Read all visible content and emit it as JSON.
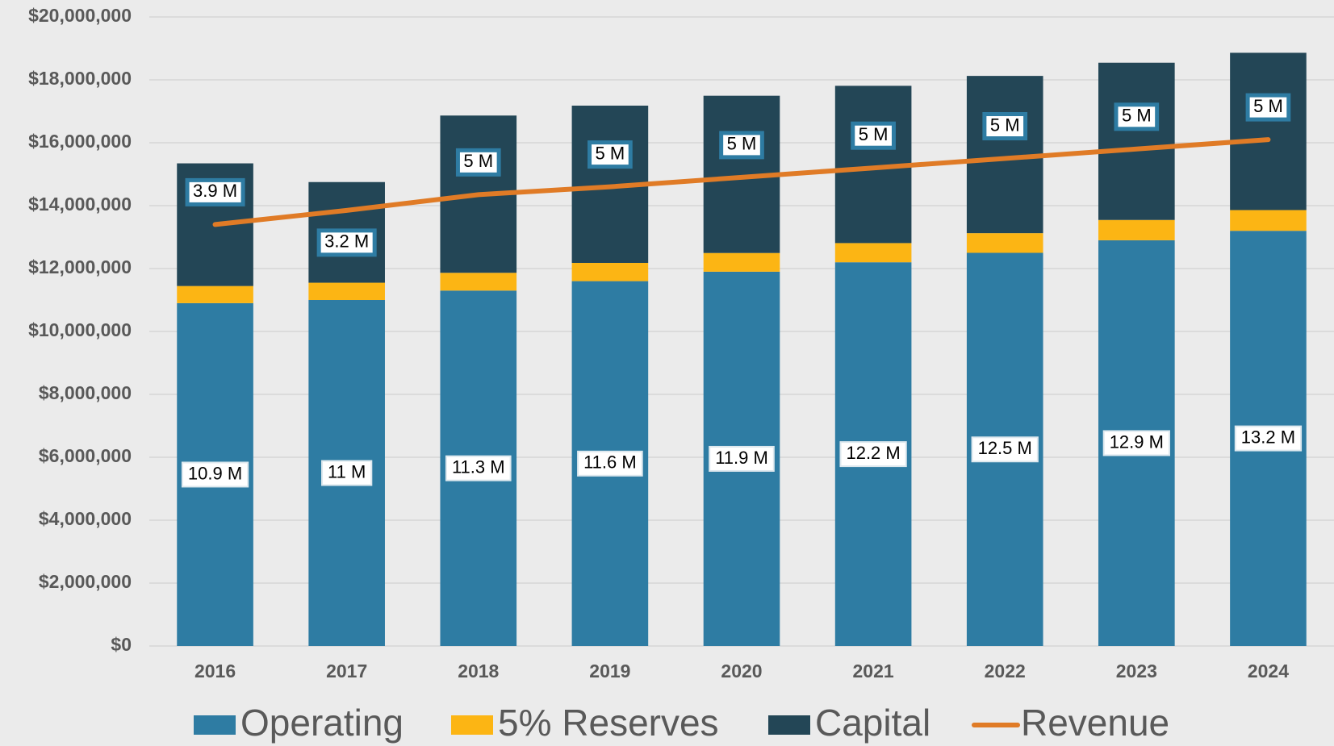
{
  "chart_data": {
    "type": "bar",
    "stacked": true,
    "categories": [
      "2016",
      "2017",
      "2018",
      "2019",
      "2020",
      "2021",
      "2022",
      "2023",
      "2024"
    ],
    "series": [
      {
        "name": "Operating",
        "color": "#2e7ca3",
        "values": [
          10900000,
          11000000,
          11300000,
          11600000,
          11900000,
          12200000,
          12500000,
          12900000,
          13200000
        ],
        "value_labels": [
          "10.9 M",
          "11 M",
          "11.3 M",
          "11.6 M",
          "11.9 M",
          "12.2 M",
          "12.5 M",
          "12.9 M",
          "13.2 M"
        ]
      },
      {
        "name": "5% Reserves",
        "color": "#fcb514",
        "values": [
          545000,
          550000,
          565000,
          580000,
          595000,
          610000,
          625000,
          645000,
          660000
        ]
      },
      {
        "name": "Capital",
        "color": "#234656",
        "values": [
          3900000,
          3200000,
          5000000,
          5000000,
          5000000,
          5000000,
          5000000,
          5000000,
          5000000
        ],
        "value_labels": [
          "3.9 M",
          "3.2 M",
          "5 M",
          "5 M",
          "5 M",
          "5 M",
          "5 M",
          "5 M",
          "5 M"
        ]
      },
      {
        "name": "Revenue",
        "type": "line",
        "color": "#e07b26",
        "values": [
          13400000,
          13850000,
          14350000,
          14600000,
          14900000,
          15200000,
          15500000,
          15800000,
          16100000
        ]
      }
    ],
    "ylim": [
      0,
      20000000
    ],
    "yticks": [
      {
        "value": 0,
        "label": "$0"
      },
      {
        "value": 2000000,
        "label": "$2,000,000"
      },
      {
        "value": 4000000,
        "label": "$4,000,000"
      },
      {
        "value": 6000000,
        "label": "$6,000,000"
      },
      {
        "value": 8000000,
        "label": "$8,000,000"
      },
      {
        "value": 10000000,
        "label": "$10,000,000"
      },
      {
        "value": 12000000,
        "label": "$12,000,000"
      },
      {
        "value": 14000000,
        "label": "$14,000,000"
      },
      {
        "value": 16000000,
        "label": "$16,000,000"
      },
      {
        "value": 18000000,
        "label": "$18,000,000"
      },
      {
        "value": 20000000,
        "label": "$20,000,000"
      }
    ],
    "grid": true,
    "legend": "bottom"
  }
}
